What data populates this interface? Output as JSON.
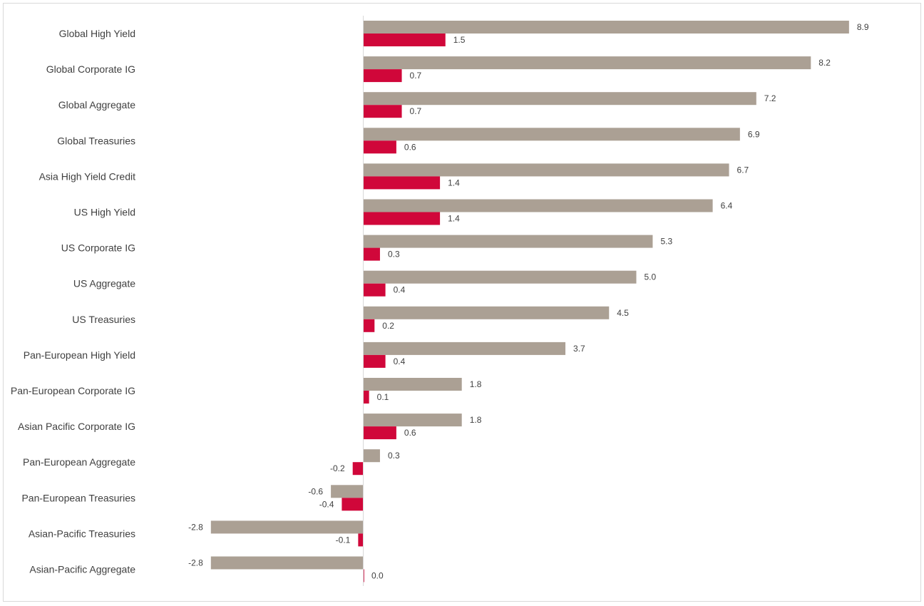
{
  "colors": {
    "series_a": "#aba094",
    "series_b": "#d0073a",
    "axis": "#d9d9d9",
    "text": "#404040"
  },
  "chart_data": {
    "type": "bar",
    "orientation": "horizontal",
    "categories": [
      "Global High Yield",
      "Global Corporate IG",
      "Global Aggregate",
      "Global Treasuries",
      "Asia High Yield Credit",
      "US High Yield",
      "US Corporate IG",
      "US Aggregate",
      "US Treasuries",
      "Pan-European High Yield",
      "Pan-European Corporate IG",
      "Asian Pacific Corporate IG",
      "Pan-European Aggregate",
      "Pan-European Treasuries",
      "Asian-Pacific Treasuries",
      "Asian-Pacific Aggregate"
    ],
    "series": [
      {
        "values": [
          8.9,
          8.2,
          7.2,
          6.9,
          6.7,
          6.4,
          5.3,
          5.0,
          4.5,
          3.7,
          1.8,
          1.8,
          0.3,
          -0.6,
          -2.8,
          -2.8
        ],
        "labels": [
          "8.9",
          "8.2",
          "7.2",
          "6.9",
          "6.7",
          "6.4",
          "5.3",
          "5.0",
          "4.5",
          "3.7",
          "1.8",
          "1.8",
          "0.3",
          "-0.6",
          "-2.8",
          "-2.8"
        ]
      },
      {
        "values": [
          1.5,
          0.7,
          0.7,
          0.6,
          1.4,
          1.4,
          0.3,
          0.4,
          0.2,
          0.4,
          0.1,
          0.6,
          -0.2,
          -0.4,
          -0.1,
          0.0
        ],
        "labels": [
          "1.5",
          "0.7",
          "0.7",
          "0.6",
          "1.4",
          "1.4",
          "0.3",
          "0.4",
          "0.2",
          "0.4",
          "0.1",
          "0.6",
          "-0.2",
          "-0.4",
          "-0.1",
          "0.0"
        ]
      }
    ],
    "xlim": [
      -2.8,
      8.9
    ],
    "legend": "none",
    "grid": false
  }
}
